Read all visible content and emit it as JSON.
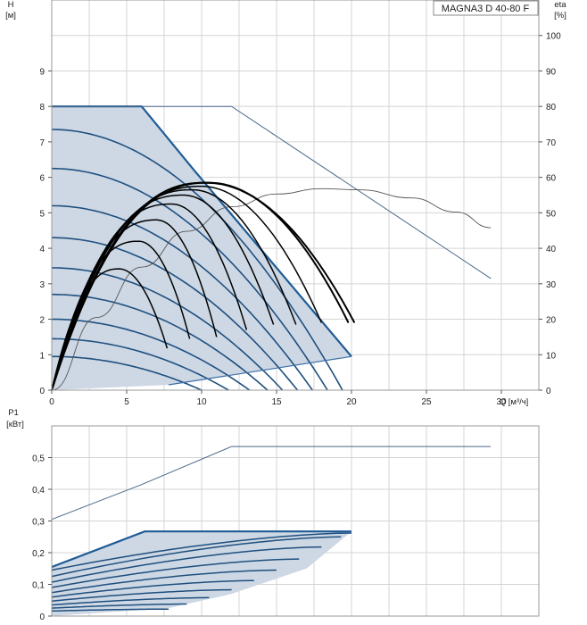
{
  "product": "MAGNA3 D 40-80 F",
  "colors": {
    "envelope_fill": "#cdd8e4",
    "envelope_outline": "#1f5b96",
    "curve_dark_blue": "#1f4f7f",
    "duty_black": "#000000",
    "thin_line": "#4a6789",
    "grid": "#d4d4d4"
  },
  "chart_data": [
    {
      "type": "line",
      "name": "head-and-efficiency",
      "ylabel": "H",
      "ylabel_unit": "[м]",
      "y2label": "eta",
      "y2label_unit": "[%]",
      "xlabel": "Q [м³/ч]",
      "xlim": [
        0,
        32.5
      ],
      "ylim": [
        0,
        11
      ],
      "y2lim": [
        0,
        110
      ],
      "x_ticks": [
        0,
        5,
        10,
        15,
        20,
        25,
        30
      ],
      "y_ticks": [
        0,
        1,
        2,
        3,
        4,
        5,
        6,
        7,
        8,
        9
      ],
      "y2_ticks": [
        0,
        10,
        20,
        30,
        40,
        50,
        60,
        70,
        80,
        90,
        100
      ],
      "grid": true,
      "envelope": [
        [
          0,
          8.0
        ],
        [
          6,
          8.0
        ],
        [
          9.5,
          6.2
        ],
        [
          20,
          0.95
        ],
        [
          7.8,
          0.15
        ],
        [
          0,
          0
        ]
      ],
      "twin_pump_curve": [
        [
          0,
          8.0
        ],
        [
          12,
          8.0
        ],
        [
          29.3,
          3.15
        ]
      ],
      "speed_curves": [
        {
          "h0": 7.35,
          "qmax": 19.4
        },
        {
          "h0": 6.25,
          "qmax": 18.4
        },
        {
          "h0": 5.2,
          "qmax": 17.4
        },
        {
          "h0": 4.3,
          "qmax": 16.4
        },
        {
          "h0": 3.45,
          "qmax": 15.4
        },
        {
          "h0": 2.7,
          "qmax": 14.4
        },
        {
          "h0": 2.0,
          "qmax": 13.2
        },
        {
          "h0": 1.45,
          "qmax": 11.8
        },
        {
          "h0": 0.95,
          "qmax": 10.0
        }
      ],
      "efficiency_curves": [
        {
          "peak_q": 10.3,
          "peak_h": 5.85,
          "q_end": 20.2,
          "h_end": 1.9
        },
        {
          "peak_q": 10.5,
          "peak_h": 5.85,
          "q_end": 19.8,
          "h_end": 1.9
        },
        {
          "peak_q": 10.0,
          "peak_h": 5.75,
          "q_end": 18.0,
          "h_end": 1.9
        },
        {
          "peak_q": 9.4,
          "peak_h": 5.65,
          "q_end": 16.3,
          "h_end": 1.85
        },
        {
          "peak_q": 8.8,
          "peak_h": 5.5,
          "q_end": 14.8,
          "h_end": 1.85
        },
        {
          "peak_q": 8.0,
          "peak_h": 5.25,
          "q_end": 13.0,
          "h_end": 1.7
        },
        {
          "peak_q": 7.0,
          "peak_h": 4.8,
          "q_end": 11.0,
          "h_end": 1.5
        },
        {
          "peak_q": 5.8,
          "peak_h": 4.2,
          "q_end": 9.2,
          "h_end": 1.45
        },
        {
          "peak_q": 4.5,
          "peak_h": 3.42,
          "q_end": 7.7,
          "h_end": 1.18
        }
      ],
      "eta_curve": [
        [
          0,
          0
        ],
        [
          3,
          20.5
        ],
        [
          6,
          34.7
        ],
        [
          9,
          44.8
        ],
        [
          12,
          51.7
        ],
        [
          15,
          55.3
        ],
        [
          18,
          56.8
        ],
        [
          20.5,
          56.5
        ],
        [
          24,
          54.2
        ],
        [
          27,
          50.2
        ],
        [
          29.3,
          45.8
        ]
      ],
      "eta_peak": {
        "q": 20.5,
        "eta": 56.5
      }
    },
    {
      "type": "line",
      "name": "power",
      "ylabel": "P1",
      "ylabel_unit": "[кВт]",
      "xlim": [
        0,
        32.5
      ],
      "ylim": [
        0,
        0.6
      ],
      "y_ticks": [
        "0",
        "0,1",
        "0,2",
        "0,3",
        "0,4",
        "0,5"
      ],
      "y_tick_values": [
        0,
        0.1,
        0.2,
        0.3,
        0.4,
        0.5
      ],
      "grid": true,
      "twin_power_curve": [
        [
          0,
          0.305
        ],
        [
          6,
          0.415
        ],
        [
          12,
          0.535
        ],
        [
          29.3,
          0.535
        ]
      ],
      "envelope": [
        [
          0,
          0.155
        ],
        [
          6.2,
          0.267
        ],
        [
          20,
          0.267
        ],
        [
          17,
          0.15
        ],
        [
          12,
          0.07
        ],
        [
          7.8,
          0.025
        ],
        [
          0,
          0
        ]
      ],
      "speed_power_curves": [
        {
          "p0": 0.145,
          "q_end": 20.0,
          "p_end": 0.262
        },
        {
          "p0": 0.125,
          "q_end": 19.3,
          "p_end": 0.25
        },
        {
          "p0": 0.107,
          "q_end": 18.0,
          "p_end": 0.218
        },
        {
          "p0": 0.09,
          "q_end": 16.5,
          "p_end": 0.18
        },
        {
          "p0": 0.074,
          "q_end": 15.0,
          "p_end": 0.145
        },
        {
          "p0": 0.06,
          "q_end": 13.5,
          "p_end": 0.112
        },
        {
          "p0": 0.047,
          "q_end": 12.0,
          "p_end": 0.083
        },
        {
          "p0": 0.035,
          "q_end": 10.5,
          "p_end": 0.058
        },
        {
          "p0": 0.025,
          "q_end": 9.0,
          "p_end": 0.038
        },
        {
          "p0": 0.016,
          "q_end": 7.8,
          "p_end": 0.022
        }
      ]
    }
  ]
}
